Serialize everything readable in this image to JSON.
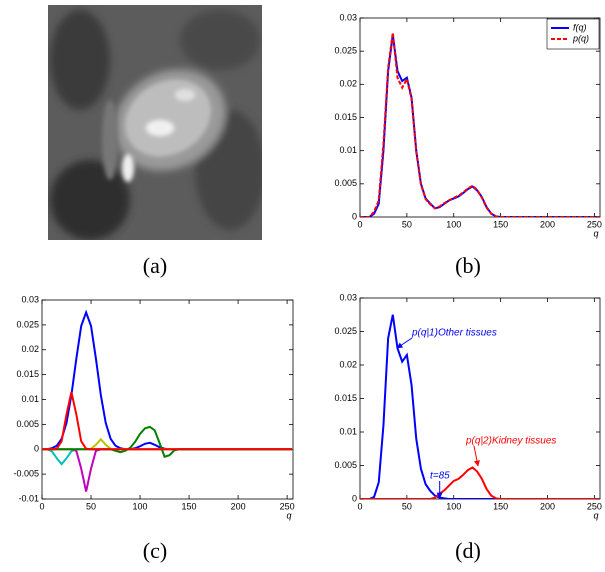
{
  "captions": [
    "(a)",
    "(b)",
    "(c)",
    "(d)"
  ],
  "chart_data": [
    {
      "type": "line",
      "xlabel": "q",
      "x": [
        0,
        5,
        10,
        15,
        20,
        25,
        30,
        35,
        40,
        45,
        50,
        55,
        60,
        65,
        70,
        75,
        80,
        85,
        90,
        95,
        100,
        105,
        110,
        115,
        120,
        125,
        130,
        135,
        140,
        145,
        150,
        155,
        160,
        165,
        170,
        175,
        180,
        185,
        190,
        195,
        200,
        205,
        210,
        215,
        220,
        225,
        230,
        235,
        240,
        245,
        250,
        255
      ],
      "xlim": [
        0,
        256
      ],
      "ylim": [
        0,
        0.03
      ],
      "xticks": [
        0,
        50,
        100,
        150,
        200,
        250
      ],
      "yticks": [
        0,
        0.005,
        0.01,
        0.015,
        0.02,
        0.025,
        0.03
      ],
      "legend": "upper right",
      "series": [
        {
          "name": "f(q)",
          "color": "#0000ff",
          "linestyle": "solid",
          "values": [
            0,
            0,
            0,
            0.0005,
            0.002,
            0.01,
            0.022,
            0.0275,
            0.022,
            0.0205,
            0.021,
            0.018,
            0.01,
            0.005,
            0.0028,
            0.002,
            0.0013,
            0.0015,
            0.002,
            0.0025,
            0.0028,
            0.0031,
            0.0036,
            0.0042,
            0.0046,
            0.004,
            0.003,
            0.0015,
            0.0005,
            0.0001,
            0,
            0,
            0,
            0,
            0,
            0,
            0,
            0,
            0,
            0,
            0,
            0,
            0,
            0,
            0,
            0,
            0,
            0,
            0,
            0,
            0,
            0
          ]
        },
        {
          "name": "p(q)",
          "color": "#ff0000",
          "linestyle": "dashed",
          "values": [
            0,
            0,
            0,
            0.0008,
            0.0025,
            0.011,
            0.0225,
            0.0278,
            0.021,
            0.0195,
            0.0208,
            0.0178,
            0.0098,
            0.0049,
            0.0027,
            0.0019,
            0.0013,
            0.0016,
            0.0021,
            0.0025,
            0.0029,
            0.0032,
            0.0037,
            0.0043,
            0.0047,
            0.0041,
            0.0029,
            0.0014,
            0.0005,
            0.0001,
            0,
            0,
            0,
            0,
            0,
            0,
            0,
            0,
            0,
            0,
            0,
            0,
            0,
            0,
            0,
            0,
            0,
            0,
            0,
            0,
            0,
            0
          ]
        }
      ]
    },
    {
      "type": "line",
      "xlabel": "q",
      "x": [
        0,
        5,
        10,
        15,
        20,
        25,
        30,
        35,
        40,
        45,
        50,
        55,
        60,
        65,
        70,
        75,
        80,
        85,
        90,
        95,
        100,
        105,
        110,
        115,
        120,
        125,
        130,
        135,
        140,
        145,
        150,
        155,
        160,
        165,
        170,
        175,
        180,
        185,
        190,
        195,
        200,
        205,
        210,
        215,
        220,
        225,
        230,
        235,
        240,
        245,
        250,
        255
      ],
      "xlim": [
        0,
        256
      ],
      "ylim": [
        -0.01,
        0.03
      ],
      "xticks": [
        0,
        50,
        100,
        150,
        200,
        250
      ],
      "yticks": [
        -0.01,
        -0.005,
        0,
        0.005,
        0.01,
        0.015,
        0.02,
        0.025,
        0.03
      ],
      "series": [
        {
          "color": "#0000ff",
          "linestyle": "solid",
          "values": [
            0,
            0,
            0.0002,
            0.0007,
            0.0021,
            0.0053,
            0.0109,
            0.0182,
            0.0248,
            0.0275,
            0.0248,
            0.0182,
            0.0109,
            0.0053,
            0.0021,
            0.0007,
            0.0002,
            0,
            0,
            0.0002,
            0.0006,
            0.0011,
            0.0013,
            0.0009,
            0.0004,
            0.0001,
            0,
            0,
            0,
            0,
            0,
            0,
            0,
            0,
            0,
            0,
            0,
            0,
            0,
            0,
            0,
            0,
            0,
            0,
            0,
            0,
            0,
            0,
            0,
            0,
            0,
            0
          ]
        },
        {
          "color": "#00bfbf",
          "linestyle": "solid",
          "values": [
            0,
            0,
            -0.0004,
            -0.0018,
            -0.003,
            -0.0018,
            -0.0004,
            0,
            0,
            0,
            0,
            0,
            0,
            0,
            0,
            0,
            0,
            0,
            0,
            0,
            0,
            0,
            0,
            0,
            0,
            0,
            0,
            0,
            0,
            0,
            0,
            0,
            0,
            0,
            0,
            0,
            0,
            0,
            0,
            0,
            0,
            0,
            0,
            0,
            0,
            0,
            0,
            0,
            0,
            0,
            0,
            0
          ]
        },
        {
          "color": "#bf00bf",
          "linestyle": "solid",
          "values": [
            0,
            0,
            0,
            0,
            0,
            0,
            0,
            -0.0003,
            -0.0039,
            -0.0085,
            -0.0039,
            -0.0003,
            0,
            0,
            0,
            0,
            0,
            0,
            0,
            0,
            0,
            0,
            0,
            0,
            0,
            0,
            0,
            0,
            0,
            0,
            0,
            0,
            0,
            0,
            0,
            0,
            0,
            0,
            0,
            0,
            0,
            0,
            0,
            0,
            0,
            0,
            0,
            0,
            0,
            0,
            0,
            0
          ]
        },
        {
          "color": "#bfbf00",
          "linestyle": "solid",
          "values": [
            0,
            0,
            0,
            0,
            0,
            0,
            0,
            0,
            0,
            0,
            0.0001,
            0.0009,
            0.002,
            0.0009,
            0.0001,
            0,
            0,
            0,
            0,
            0,
            0,
            0,
            0,
            0,
            0,
            0,
            0,
            0,
            0,
            0,
            0,
            0,
            0,
            0,
            0,
            0,
            0,
            0,
            0,
            0,
            0,
            0,
            0,
            0,
            0,
            0,
            0,
            0,
            0,
            0,
            0,
            0
          ]
        },
        {
          "color": "#008000",
          "linestyle": "solid",
          "values": [
            0,
            0,
            0,
            0,
            0,
            0,
            0,
            0,
            0,
            0,
            0,
            0,
            0,
            0,
            0,
            -0.0003,
            -0.0006,
            -0.0003,
            0.0003,
            0.0015,
            0.0031,
            0.0042,
            0.0045,
            0.0038,
            0.0012,
            -0.0015,
            -0.0012,
            -0.0002,
            0,
            0,
            0,
            0,
            0,
            0,
            0,
            0,
            0,
            0,
            0,
            0,
            0,
            0,
            0,
            0,
            0,
            0,
            0,
            0,
            0,
            0,
            0,
            0
          ]
        },
        {
          "color": "#ff0000",
          "linestyle": "solid",
          "values": [
            0,
            0,
            0,
            0.0001,
            0.0016,
            0.007,
            0.0115,
            0.007,
            0.0016,
            0.0001,
            0,
            0,
            0,
            0,
            0,
            0,
            0,
            0,
            0,
            0,
            0,
            0,
            0,
            0,
            0,
            0,
            0,
            0,
            0,
            0,
            0,
            0,
            0,
            0,
            0,
            0,
            0,
            0,
            0,
            0,
            0,
            0,
            0,
            0,
            0,
            0,
            0,
            0,
            0,
            0,
            0,
            0
          ]
        }
      ]
    },
    {
      "type": "line",
      "xlabel": "q",
      "x": [
        0,
        5,
        10,
        15,
        20,
        25,
        30,
        35,
        40,
        45,
        50,
        55,
        60,
        65,
        70,
        75,
        80,
        85,
        90,
        95,
        100,
        105,
        110,
        115,
        120,
        125,
        130,
        135,
        140,
        145,
        150,
        155,
        160,
        165,
        170,
        175,
        180,
        185,
        190,
        195,
        200,
        205,
        210,
        215,
        220,
        225,
        230,
        235,
        240,
        245,
        250,
        255
      ],
      "xlim": [
        0,
        256
      ],
      "ylim": [
        0,
        0.03
      ],
      "xticks": [
        0,
        50,
        100,
        150,
        200,
        250
      ],
      "yticks": [
        0,
        0.005,
        0.01,
        0.015,
        0.02,
        0.025,
        0.03
      ],
      "series": [
        {
          "color": "#0000ff",
          "linestyle": "solid",
          "values": [
            0,
            0,
            0,
            0.0003,
            0.0025,
            0.011,
            0.024,
            0.0275,
            0.0225,
            0.0205,
            0.0215,
            0.017,
            0.009,
            0.0045,
            0.0022,
            0.0012,
            0.0005,
            0.0002,
            0.0001,
            0,
            0,
            0,
            0,
            0,
            0,
            0,
            0,
            0,
            0,
            0,
            0,
            0,
            0,
            0,
            0,
            0,
            0,
            0,
            0,
            0,
            0,
            0,
            0,
            0,
            0,
            0,
            0,
            0,
            0,
            0,
            0,
            0
          ]
        },
        {
          "color": "#ff0000",
          "linestyle": "solid",
          "values": [
            0,
            0,
            0,
            0,
            0,
            0,
            0,
            0,
            0,
            0,
            0,
            0,
            0,
            0,
            0,
            0,
            0.0002,
            0.0008,
            0.0013,
            0.002,
            0.0027,
            0.003,
            0.0036,
            0.0043,
            0.0047,
            0.0041,
            0.003,
            0.0015,
            0.0005,
            0.0001,
            0,
            0,
            0,
            0,
            0,
            0,
            0,
            0,
            0,
            0,
            0,
            0,
            0,
            0,
            0,
            0,
            0,
            0,
            0,
            0,
            0,
            0
          ]
        }
      ],
      "annotations": [
        {
          "text": "p(q|1)Other tissues",
          "color": "#0000ff"
        },
        {
          "text": "p(q|2)Kidney tissues",
          "color": "#ff0000"
        },
        {
          "text": "t=85",
          "color": "#0000ff",
          "x": 85
        }
      ]
    }
  ]
}
